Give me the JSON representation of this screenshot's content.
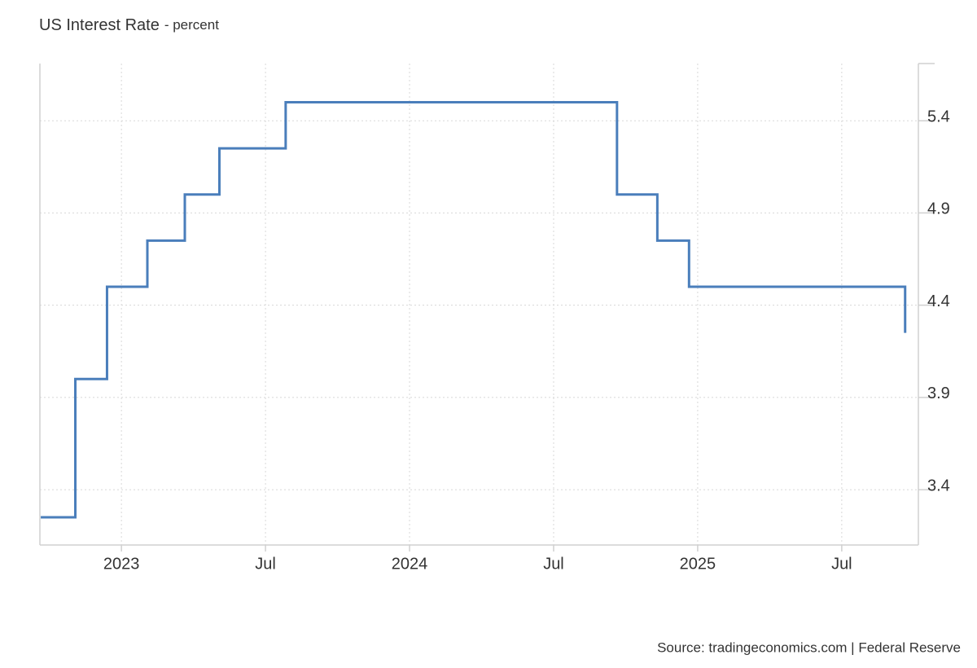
{
  "chart_data": {
    "type": "line",
    "step": "post",
    "title": "US Interest Rate",
    "subtitle": "- percent",
    "source": "Source: tradingeconomics.com | Federal Reserve",
    "x": [
      2022.72,
      2022.84,
      2022.95,
      2023.09,
      2023.22,
      2023.34,
      2023.57,
      2024.72,
      2024.86,
      2024.97,
      2025.72
    ],
    "series": [
      {
        "color": "#4a7ebb",
        "values": [
          3.25,
          4.0,
          4.5,
          4.75,
          5.0,
          5.25,
          5.5,
          5.0,
          4.75,
          4.5,
          4.25
        ]
      }
    ],
    "xlim": [
      2022.717,
      2025.766
    ],
    "xticks": [
      {
        "value": 2023,
        "label": "2023"
      },
      {
        "value": 2023.5,
        "label": "Jul"
      },
      {
        "value": 2024,
        "label": "2024"
      },
      {
        "value": 2024.5,
        "label": "Jul"
      },
      {
        "value": 2025,
        "label": "2025"
      },
      {
        "value": 2025.5,
        "label": "Jul"
      }
    ],
    "ylim": [
      3.1,
      5.71
    ],
    "yticks": [
      3.4,
      3.9,
      4.4,
      4.9,
      5.4
    ],
    "grid": true
  }
}
